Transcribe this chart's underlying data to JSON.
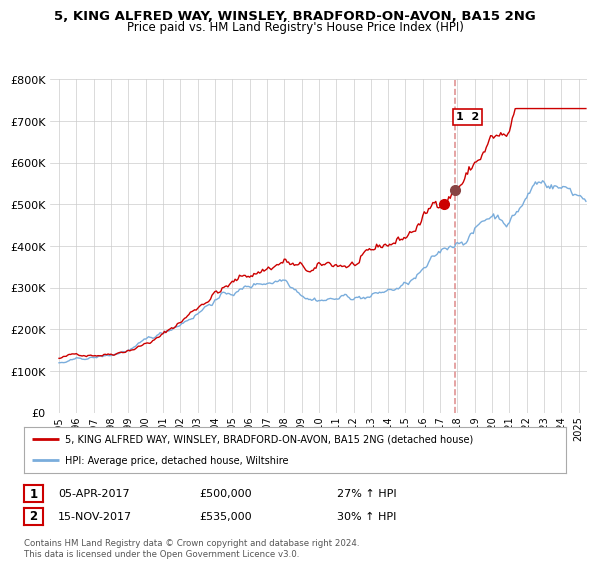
{
  "title": "5, KING ALFRED WAY, WINSLEY, BRADFORD-ON-AVON, BA15 2NG",
  "subtitle": "Price paid vs. HM Land Registry's House Price Index (HPI)",
  "legend_line1": "5, KING ALFRED WAY, WINSLEY, BRADFORD-ON-AVON, BA15 2NG (detached house)",
  "legend_line2": "HPI: Average price, detached house, Wiltshire",
  "annotation1_date": "05-APR-2017",
  "annotation1_price": "£500,000",
  "annotation1_hpi": "27% ↑ HPI",
  "annotation2_date": "15-NOV-2017",
  "annotation2_price": "£535,000",
  "annotation2_hpi": "30% ↑ HPI",
  "copyright": "Contains HM Land Registry data © Crown copyright and database right 2024.\nThis data is licensed under the Open Government Licence v3.0.",
  "vline_x": 2017.88,
  "point1_x": 2017.25,
  "point1_y": 500000,
  "point2_x": 2017.88,
  "point2_y": 535000,
  "ylim": [
    0,
    800000
  ],
  "xlim": [
    1994.5,
    2025.5
  ],
  "red_color": "#cc0000",
  "blue_color": "#7aaddc",
  "vline_color": "#dd8888",
  "background_color": "#ffffff",
  "grid_color": "#cccccc"
}
